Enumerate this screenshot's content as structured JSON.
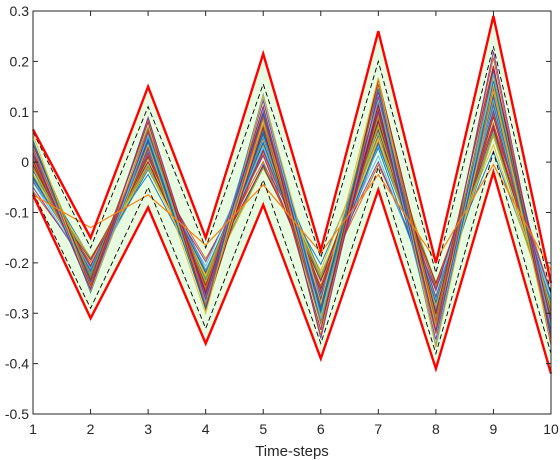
{
  "chart_data": {
    "type": "line",
    "title": "",
    "xlabel": "Time-steps",
    "ylabel": "",
    "xlim": [
      1,
      10
    ],
    "ylim": [
      -0.5,
      0.3
    ],
    "x_ticks": [
      1,
      2,
      3,
      4,
      5,
      6,
      7,
      8,
      9,
      10
    ],
    "x_tick_labels": [
      "1",
      "2",
      "3",
      "4",
      "5",
      "6",
      "7",
      "8",
      "9",
      "10"
    ],
    "y_ticks": [
      -0.5,
      -0.4,
      -0.3,
      -0.2,
      -0.1,
      0,
      0.1,
      0.2,
      0.3
    ],
    "y_tick_labels": [
      "-0.5",
      "-0.4",
      "-0.3",
      "-0.2",
      "-0.1",
      "0",
      "0.1",
      "0.2",
      "0.3"
    ],
    "grid": false,
    "legend": "none",
    "x": [
      1,
      2,
      3,
      4,
      5,
      6,
      7,
      8,
      9,
      10
    ],
    "series": [
      {
        "role": "envelope-upper",
        "color": "#ff0000",
        "values": [
          0.065,
          -0.15,
          0.15,
          -0.15,
          0.215,
          -0.175,
          0.26,
          -0.2,
          0.29,
          -0.24
        ]
      },
      {
        "role": "envelope-lower",
        "color": "#ff0000",
        "values": [
          -0.065,
          -0.31,
          -0.09,
          -0.36,
          -0.085,
          -0.39,
          -0.055,
          -0.41,
          -0.02,
          -0.42
        ]
      },
      {
        "role": "bound-upper-dashed",
        "color": "#000000",
        "values": [
          0.06,
          -0.17,
          0.11,
          -0.17,
          0.155,
          -0.19,
          0.2,
          -0.22,
          0.23,
          -0.26
        ]
      },
      {
        "role": "bound-lower-dashed",
        "color": "#000000",
        "values": [
          -0.06,
          -0.29,
          -0.05,
          -0.33,
          -0.035,
          -0.36,
          -0.01,
          -0.38,
          0.02,
          -0.38
        ]
      },
      {
        "role": "band-upper",
        "color": "#e6fbe0",
        "values": [
          0.065,
          -0.15,
          0.15,
          -0.15,
          0.215,
          -0.175,
          0.26,
          -0.2,
          0.29,
          -0.24
        ]
      },
      {
        "role": "band-lower",
        "color": "#e6fbe0",
        "values": [
          -0.065,
          -0.31,
          -0.09,
          -0.36,
          -0.085,
          -0.39,
          -0.055,
          -0.41,
          -0.02,
          -0.42
        ]
      },
      {
        "role": "reference",
        "color": "#ff7f0e",
        "values": [
          -0.065,
          -0.13,
          -0.065,
          -0.165,
          -0.045,
          -0.18,
          -0.025,
          -0.195,
          -0.005,
          -0.215
        ]
      }
    ],
    "ensemble": {
      "center": [
        0.0,
        -0.225,
        0.03,
        -0.25,
        0.06,
        -0.275,
        0.09,
        -0.3,
        0.12,
        -0.315
      ],
      "half_width": [
        0.06,
        -0.04,
        0.06,
        -0.06,
        0.085,
        -0.075,
        0.1,
        -0.075,
        0.1,
        -0.06
      ],
      "colors": [
        "#0072bd",
        "#d95319",
        "#edb120",
        "#7e2f8e",
        "#77ac30",
        "#4dbeee",
        "#a2142f"
      ],
      "count": 60
    }
  }
}
